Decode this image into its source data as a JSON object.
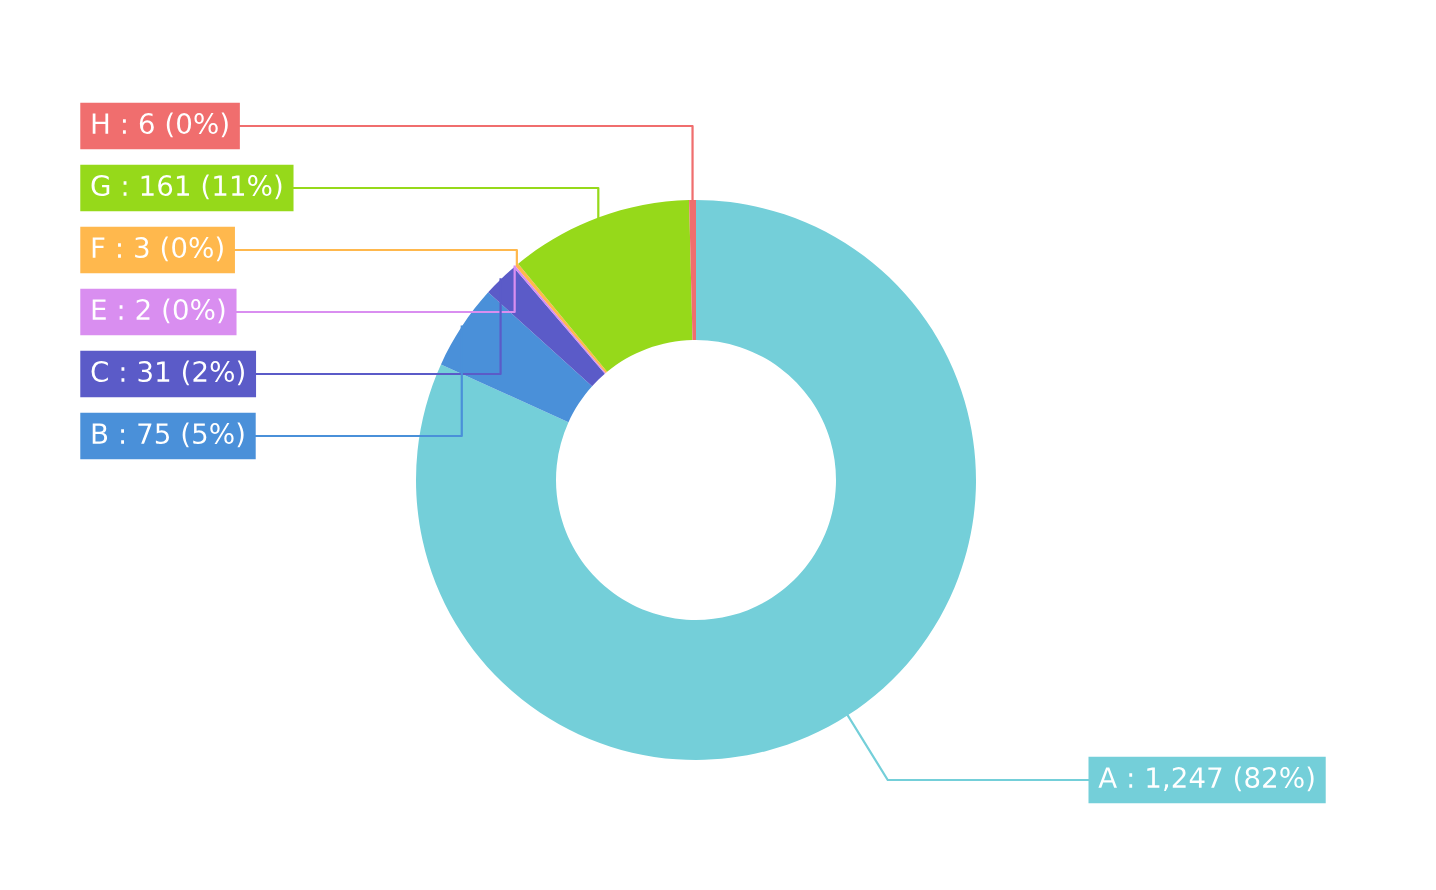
{
  "chart_data": {
    "type": "donut",
    "categories": [
      "A",
      "B",
      "C",
      "E",
      "F",
      "G",
      "H"
    ],
    "values": [
      1247,
      75,
      31,
      2,
      3,
      161,
      6
    ],
    "value_labels": [
      "1,247 (82%)",
      "75 (5%)",
      "31 (2%)",
      "2 (0%)",
      "3 (0%)",
      "161 (11%)",
      "6 (0%)"
    ],
    "colors": [
      "#74cfd9",
      "#4a90d9",
      "#5b5bc8",
      "#d98ef0",
      "#ffb84d",
      "#96d91a",
      "#f06e6e"
    ],
    "legend": false
  }
}
